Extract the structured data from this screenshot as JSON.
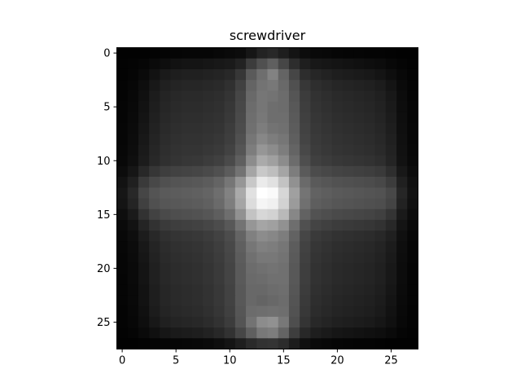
{
  "chart_data": {
    "type": "heatmap",
    "title": "screwdriver",
    "colormap": "gray",
    "value_range": [
      0,
      255
    ],
    "rows": 28,
    "cols": 28,
    "xlim": [
      -0.5,
      27.5
    ],
    "ylim": [
      27.5,
      -0.5
    ],
    "xticks": [
      0,
      5,
      10,
      15,
      20,
      25
    ],
    "yticks": [
      0,
      5,
      10,
      15,
      20,
      25
    ],
    "grid": false,
    "values": [
      [
        2,
        2,
        2,
        3,
        4,
        5,
        6,
        6,
        6,
        8,
        10,
        12,
        22,
        35,
        40,
        30,
        20,
        12,
        9,
        8,
        6,
        5,
        5,
        4,
        4,
        3,
        2,
        2
      ],
      [
        3,
        4,
        6,
        10,
        14,
        18,
        20,
        20,
        22,
        24,
        26,
        34,
        60,
        80,
        95,
        70,
        45,
        30,
        24,
        22,
        20,
        18,
        16,
        14,
        12,
        8,
        5,
        3
      ],
      [
        3,
        5,
        10,
        18,
        26,
        30,
        32,
        32,
        34,
        36,
        40,
        55,
        90,
        110,
        130,
        100,
        70,
        45,
        38,
        34,
        30,
        28,
        26,
        24,
        20,
        14,
        8,
        4
      ],
      [
        4,
        7,
        14,
        24,
        32,
        36,
        38,
        38,
        40,
        42,
        48,
        65,
        100,
        115,
        120,
        105,
        80,
        55,
        46,
        42,
        38,
        36,
        34,
        32,
        28,
        20,
        10,
        5
      ],
      [
        4,
        8,
        16,
        28,
        36,
        40,
        42,
        42,
        44,
        46,
        52,
        70,
        105,
        118,
        115,
        108,
        85,
        60,
        50,
        46,
        42,
        40,
        38,
        36,
        32,
        24,
        12,
        5
      ],
      [
        5,
        9,
        18,
        30,
        38,
        42,
        44,
        44,
        46,
        48,
        55,
        72,
        108,
        118,
        110,
        108,
        88,
        62,
        52,
        48,
        44,
        42,
        40,
        38,
        34,
        26,
        13,
        6
      ],
      [
        5,
        10,
        20,
        32,
        40,
        44,
        46,
        46,
        48,
        50,
        57,
        74,
        110,
        120,
        110,
        110,
        90,
        64,
        54,
        50,
        46,
        44,
        42,
        40,
        36,
        28,
        14,
        6
      ],
      [
        6,
        11,
        22,
        34,
        42,
        46,
        48,
        48,
        50,
        52,
        60,
        76,
        112,
        125,
        115,
        112,
        92,
        66,
        56,
        52,
        48,
        46,
        44,
        42,
        38,
        30,
        15,
        7
      ],
      [
        6,
        12,
        24,
        36,
        44,
        48,
        50,
        50,
        52,
        55,
        62,
        80,
        118,
        135,
        125,
        118,
        95,
        68,
        58,
        54,
        50,
        48,
        46,
        44,
        40,
        32,
        16,
        7
      ],
      [
        7,
        13,
        26,
        38,
        46,
        50,
        52,
        52,
        55,
        58,
        66,
        85,
        125,
        150,
        140,
        125,
        100,
        72,
        60,
        56,
        52,
        50,
        48,
        46,
        42,
        34,
        17,
        8
      ],
      [
        8,
        15,
        28,
        40,
        48,
        52,
        55,
        56,
        60,
        64,
        74,
        95,
        140,
        170,
        160,
        140,
        108,
        78,
        64,
        60,
        56,
        54,
        52,
        50,
        46,
        36,
        18,
        9
      ],
      [
        12,
        22,
        40,
        54,
        62,
        66,
        68,
        70,
        74,
        80,
        92,
        115,
        165,
        200,
        190,
        165,
        125,
        90,
        76,
        72,
        68,
        66,
        64,
        62,
        58,
        46,
        24,
        12
      ],
      [
        18,
        32,
        58,
        72,
        80,
        84,
        86,
        88,
        92,
        100,
        118,
        150,
        200,
        235,
        225,
        195,
        145,
        106,
        90,
        86,
        82,
        80,
        78,
        76,
        72,
        60,
        32,
        16
      ],
      [
        22,
        40,
        70,
        84,
        90,
        92,
        94,
        96,
        100,
        110,
        130,
        170,
        225,
        255,
        250,
        215,
        160,
        116,
        98,
        94,
        90,
        88,
        86,
        84,
        82,
        72,
        38,
        18
      ],
      [
        20,
        36,
        64,
        80,
        86,
        88,
        90,
        92,
        96,
        106,
        126,
        165,
        220,
        245,
        240,
        210,
        155,
        112,
        94,
        90,
        86,
        84,
        82,
        80,
        78,
        68,
        34,
        16
      ],
      [
        14,
        26,
        50,
        66,
        74,
        78,
        80,
        82,
        86,
        94,
        110,
        145,
        195,
        215,
        210,
        185,
        135,
        98,
        82,
        78,
        74,
        72,
        70,
        68,
        64,
        52,
        26,
        12
      ],
      [
        10,
        18,
        36,
        50,
        58,
        62,
        64,
        66,
        70,
        76,
        88,
        115,
        150,
        165,
        160,
        145,
        110,
        80,
        68,
        64,
        60,
        58,
        56,
        54,
        50,
        40,
        20,
        9
      ],
      [
        8,
        14,
        28,
        40,
        48,
        52,
        54,
        56,
        60,
        66,
        76,
        100,
        128,
        140,
        135,
        125,
        98,
        70,
        58,
        54,
        50,
        48,
        46,
        44,
        40,
        32,
        16,
        7
      ],
      [
        7,
        12,
        24,
        36,
        44,
        48,
        50,
        52,
        56,
        62,
        72,
        95,
        118,
        128,
        125,
        118,
        92,
        66,
        54,
        50,
        46,
        44,
        42,
        40,
        36,
        28,
        14,
        6
      ],
      [
        6,
        11,
        22,
        34,
        42,
        46,
        48,
        50,
        54,
        60,
        70,
        92,
        112,
        120,
        120,
        115,
        90,
        64,
        52,
        48,
        44,
        42,
        40,
        38,
        34,
        26,
        13,
        6
      ],
      [
        6,
        10,
        20,
        32,
        40,
        44,
        46,
        48,
        52,
        58,
        68,
        90,
        108,
        112,
        115,
        112,
        88,
        62,
        50,
        46,
        42,
        40,
        38,
        36,
        32,
        24,
        12,
        5
      ],
      [
        5,
        10,
        20,
        32,
        40,
        44,
        46,
        48,
        52,
        58,
        68,
        90,
        106,
        108,
        112,
        112,
        88,
        62,
        50,
        46,
        42,
        40,
        38,
        36,
        32,
        24,
        12,
        5
      ],
      [
        5,
        9,
        18,
        30,
        38,
        42,
        44,
        46,
        50,
        56,
        66,
        88,
        104,
        104,
        108,
        110,
        86,
        60,
        48,
        44,
        40,
        38,
        36,
        34,
        30,
        22,
        11,
        5
      ],
      [
        5,
        9,
        18,
        30,
        38,
        42,
        44,
        46,
        50,
        56,
        66,
        88,
        104,
        100,
        104,
        108,
        84,
        58,
        46,
        42,
        38,
        36,
        34,
        32,
        28,
        20,
        10,
        5
      ],
      [
        4,
        8,
        16,
        28,
        36,
        40,
        42,
        44,
        48,
        54,
        64,
        86,
        108,
        110,
        112,
        110,
        82,
        56,
        44,
        40,
        36,
        34,
        32,
        30,
        26,
        18,
        9,
        4
      ],
      [
        4,
        7,
        14,
        24,
        32,
        36,
        38,
        40,
        44,
        50,
        60,
        84,
        115,
        140,
        145,
        120,
        78,
        52,
        40,
        36,
        32,
        30,
        28,
        26,
        22,
        16,
        8,
        4
      ],
      [
        3,
        5,
        10,
        16,
        22,
        26,
        28,
        30,
        34,
        40,
        50,
        70,
        95,
        120,
        125,
        100,
        62,
        40,
        30,
        26,
        22,
        20,
        18,
        16,
        14,
        10,
        5,
        3
      ],
      [
        2,
        2,
        3,
        4,
        5,
        6,
        7,
        8,
        10,
        14,
        20,
        30,
        42,
        50,
        52,
        44,
        28,
        16,
        10,
        8,
        6,
        5,
        4,
        4,
        3,
        2,
        2,
        2
      ]
    ]
  }
}
